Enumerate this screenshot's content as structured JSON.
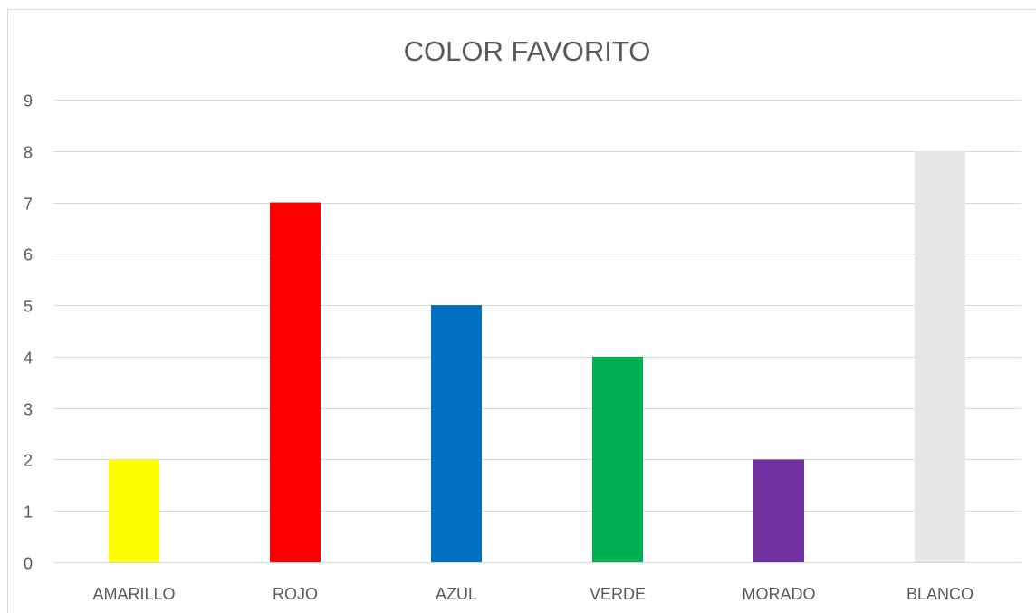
{
  "chart_data": {
    "type": "bar",
    "title": "COLOR FAVORITO",
    "xlabel": "",
    "ylabel": "",
    "categories": [
      "AMARILLO",
      "ROJO",
      "AZUL",
      "VERDE",
      "MORADO",
      "BLANCO"
    ],
    "values": [
      2,
      7,
      5,
      4,
      2,
      8
    ],
    "bar_colors": [
      "#ffff00",
      "#ff0000",
      "#0070c0",
      "#00b050",
      "#7030a0",
      "#e7e6e6"
    ],
    "ylim": [
      0,
      9
    ],
    "yticks": [
      0,
      1,
      2,
      3,
      4,
      5,
      6,
      7,
      8,
      9
    ],
    "grid": true,
    "legend": "none"
  }
}
